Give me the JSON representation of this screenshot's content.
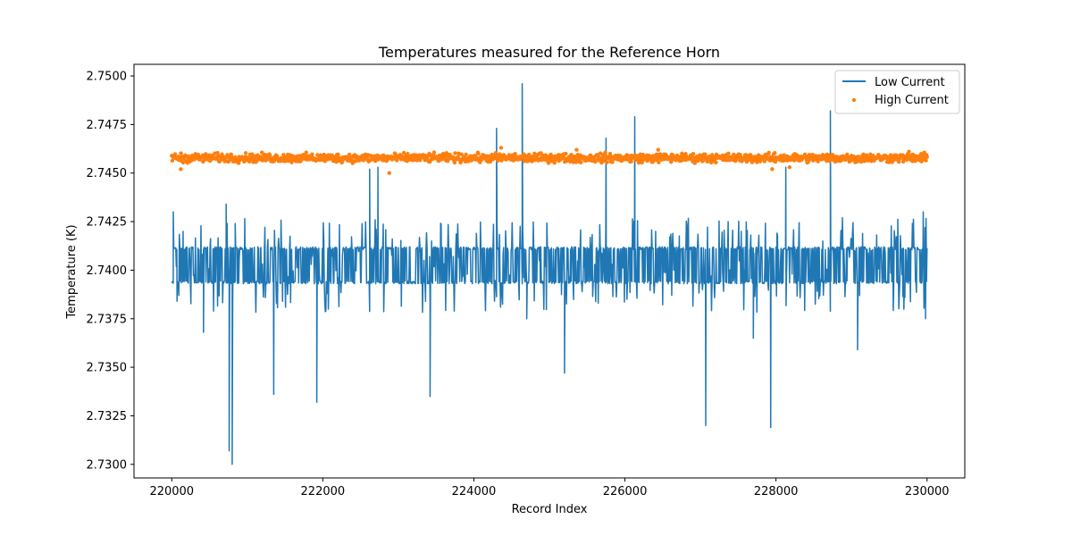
{
  "chart_data": {
    "type": "line",
    "title": "Temperatures measured for the Reference Horn",
    "xlabel": "Record Index",
    "ylabel": "Temperature (K)",
    "xlim": [
      219500,
      230500
    ],
    "ylim": [
      2.7293,
      2.7506
    ],
    "xticks": [
      220000,
      222000,
      224000,
      226000,
      228000,
      230000
    ],
    "xtick_labels": [
      "220000",
      "222000",
      "224000",
      "226000",
      "228000",
      "230000"
    ],
    "yticks": [
      2.73,
      2.7325,
      2.735,
      2.7375,
      2.74,
      2.7425,
      2.745,
      2.7475,
      2.75
    ],
    "ytick_labels": [
      "2.7300",
      "2.7325",
      "2.7350",
      "2.7375",
      "2.7400",
      "2.7425",
      "2.7450",
      "2.7475",
      "2.7500"
    ],
    "grid": false,
    "legend_position": "upper right",
    "series": [
      {
        "name": "Low Current",
        "kind": "line",
        "color": "#1f77b4",
        "x_range": [
          220000,
          230000
        ],
        "band_low": 2.7393,
        "band_high": 2.7412,
        "spikes": [
          {
            "x": 220020,
            "y": 2.743
          },
          {
            "x": 220070,
            "y": 2.7384
          },
          {
            "x": 220150,
            "y": 2.742
          },
          {
            "x": 220420,
            "y": 2.7368
          },
          {
            "x": 220720,
            "y": 2.7434
          },
          {
            "x": 220760,
            "y": 2.7307
          },
          {
            "x": 220800,
            "y": 2.73
          },
          {
            "x": 220840,
            "y": 2.7424
          },
          {
            "x": 221350,
            "y": 2.7336
          },
          {
            "x": 221920,
            "y": 2.7332
          },
          {
            "x": 222620,
            "y": 2.7452
          },
          {
            "x": 222730,
            "y": 2.7453
          },
          {
            "x": 223420,
            "y": 2.7335
          },
          {
            "x": 224300,
            "y": 2.7473
          },
          {
            "x": 224640,
            "y": 2.7496
          },
          {
            "x": 224700,
            "y": 2.7375
          },
          {
            "x": 225200,
            "y": 2.7347
          },
          {
            "x": 225750,
            "y": 2.7468
          },
          {
            "x": 226130,
            "y": 2.7479
          },
          {
            "x": 227070,
            "y": 2.732
          },
          {
            "x": 227700,
            "y": 2.7365
          },
          {
            "x": 227930,
            "y": 2.7319
          },
          {
            "x": 228130,
            "y": 2.7453
          },
          {
            "x": 228720,
            "y": 2.7482
          },
          {
            "x": 229080,
            "y": 2.7359
          },
          {
            "x": 229950,
            "y": 2.743
          },
          {
            "x": 229980,
            "y": 2.7375
          }
        ]
      },
      {
        "name": "High Current",
        "kind": "scatter",
        "color": "#ff7f0e",
        "x_range": [
          220000,
          230000
        ],
        "center": 2.74578,
        "outliers": [
          {
            "x": 220120,
            "y": 2.7452
          },
          {
            "x": 222880,
            "y": 2.745
          },
          {
            "x": 224360,
            "y": 2.7463
          },
          {
            "x": 225360,
            "y": 2.7462
          },
          {
            "x": 226440,
            "y": 2.7462
          },
          {
            "x": 227950,
            "y": 2.7452
          },
          {
            "x": 228180,
            "y": 2.7453
          },
          {
            "x": 229760,
            "y": 2.7461
          }
        ]
      }
    ]
  }
}
